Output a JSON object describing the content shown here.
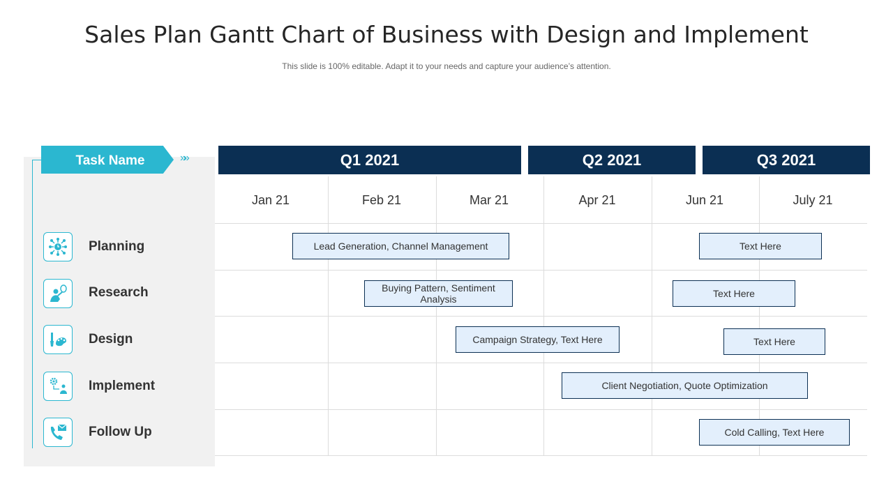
{
  "header": {
    "title": "Sales Plan Gantt Chart of Business with Design and Implement",
    "subtitle": "This slide is 100% editable. Adapt it to your needs and capture your audience’s attention."
  },
  "task_header": {
    "label": "Task Name",
    "chevrons": "»»"
  },
  "quarters": [
    "Q1 2021",
    "Q2 2021",
    "Q3 2021"
  ],
  "months": [
    "Jan 21",
    "Feb 21",
    "Mar 21",
    "Apr 21",
    "Jun 21",
    "July 21"
  ],
  "tasks": [
    {
      "label": "Planning",
      "icon": "network-clock-icon"
    },
    {
      "label": "Research",
      "icon": "person-idea-icon"
    },
    {
      "label": "Design",
      "icon": "paintbrush-palette-icon"
    },
    {
      "label": "Implement",
      "icon": "gear-person-icon"
    },
    {
      "label": "Follow Up",
      "icon": "phone-mail-icon"
    }
  ],
  "bars": [
    {
      "task": "Planning",
      "label": "Lead Generation, Channel Management"
    },
    {
      "task": "Planning",
      "label": "Text Here"
    },
    {
      "task": "Research",
      "label": "Buying Pattern, Sentiment Analysis"
    },
    {
      "task": "Research",
      "label": "Text Here"
    },
    {
      "task": "Design",
      "label": "Campaign Strategy, Text Here"
    },
    {
      "task": "Design",
      "label": "Text Here"
    },
    {
      "task": "Implement",
      "label": "Client Negotiation, Quote Optimization"
    },
    {
      "task": "Follow Up",
      "label": "Cold Calling, Text Here"
    }
  ],
  "colors": {
    "accent": "#2bb7d0",
    "navy": "#0b2f53",
    "bar_fill": "#e3effc",
    "panel": "#f1f1f1"
  }
}
